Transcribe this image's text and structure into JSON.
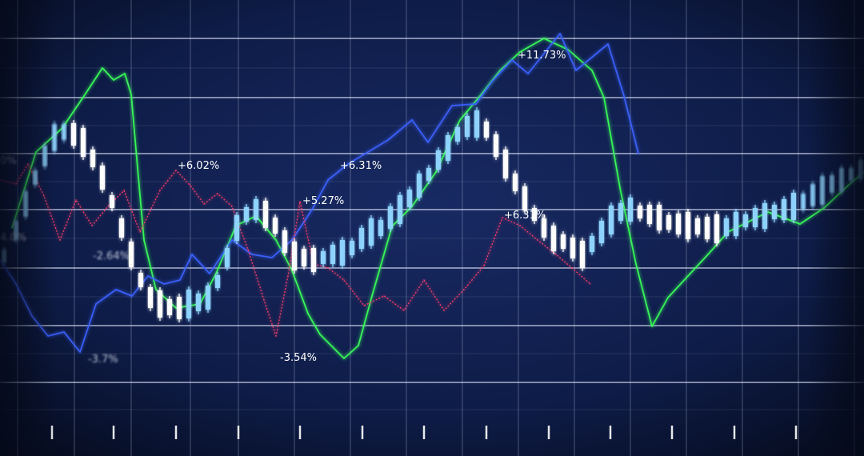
{
  "chart_data": {
    "type": "line",
    "grid": true,
    "annotations": [
      "+6.02%",
      "+6.31%",
      "+5.27%",
      "+11.73%",
      "+6.31%",
      "-2.64%",
      "-3.54%",
      "-3.7%",
      "4.0%",
      "0%"
    ],
    "series": [
      {
        "kind": "line",
        "color": "#3aff5a",
        "values": [
          [
            15,
            285
          ],
          [
            45,
            190
          ],
          [
            78,
            160
          ],
          [
            105,
            120
          ],
          [
            128,
            85
          ],
          [
            142,
            100
          ],
          [
            156,
            92
          ],
          [
            164,
            118
          ],
          [
            172,
            210
          ],
          [
            180,
            300
          ],
          [
            195,
            362
          ],
          [
            220,
            385
          ],
          [
            250,
            380
          ],
          [
            270,
            342
          ],
          [
            295,
            282
          ],
          [
            320,
            270
          ],
          [
            345,
            300
          ],
          [
            365,
            338
          ],
          [
            385,
            392
          ],
          [
            400,
            418
          ],
          [
            430,
            448
          ],
          [
            448,
            432
          ],
          [
            465,
            370
          ],
          [
            490,
            283
          ],
          [
            515,
            258
          ],
          [
            545,
            215
          ],
          [
            575,
            150
          ],
          [
            600,
            120
          ],
          [
            625,
            88
          ],
          [
            650,
            65
          ],
          [
            680,
            48
          ],
          [
            710,
            62
          ],
          [
            740,
            88
          ],
          [
            755,
            122
          ],
          [
            775,
            235
          ],
          [
            795,
            330
          ],
          [
            815,
            408
          ],
          [
            835,
            372
          ],
          [
            860,
            345
          ],
          [
            885,
            318
          ],
          [
            910,
            290
          ],
          [
            960,
            265
          ],
          [
            1000,
            280
          ],
          [
            1030,
            260
          ],
          [
            1060,
            232
          ],
          [
            1080,
            215
          ]
        ]
      },
      {
        "kind": "line",
        "color": "#3c62ff",
        "values": [
          [
            0,
            325
          ],
          [
            20,
            355
          ],
          [
            40,
            395
          ],
          [
            60,
            420
          ],
          [
            80,
            415
          ],
          [
            100,
            440
          ],
          [
            120,
            380
          ],
          [
            145,
            362
          ],
          [
            165,
            370
          ],
          [
            185,
            345
          ],
          [
            205,
            355
          ],
          [
            225,
            350
          ],
          [
            240,
            318
          ],
          [
            262,
            342
          ],
          [
            290,
            300
          ],
          [
            315,
            318
          ],
          [
            340,
            322
          ],
          [
            365,
            300
          ],
          [
            390,
            262
          ],
          [
            410,
            225
          ],
          [
            435,
            205
          ],
          [
            460,
            190
          ],
          [
            485,
            175
          ],
          [
            515,
            150
          ],
          [
            535,
            178
          ],
          [
            565,
            132
          ],
          [
            595,
            130
          ],
          [
            615,
            102
          ],
          [
            640,
            75
          ],
          [
            660,
            92
          ],
          [
            700,
            42
          ],
          [
            720,
            88
          ],
          [
            760,
            55
          ],
          [
            780,
            120
          ],
          [
            798,
            192
          ]
        ]
      },
      {
        "kind": "line",
        "color": "#ff3d6a",
        "values": [
          [
            0,
            225
          ],
          [
            20,
            230
          ],
          [
            35,
            205
          ],
          [
            55,
            245
          ],
          [
            75,
            300
          ],
          [
            95,
            250
          ],
          [
            115,
            282
          ],
          [
            135,
            258
          ],
          [
            155,
            238
          ],
          [
            175,
            290
          ],
          [
            200,
            238
          ],
          [
            220,
            213
          ],
          [
            238,
            232
          ],
          [
            255,
            255
          ],
          [
            272,
            242
          ],
          [
            290,
            258
          ],
          [
            310,
            312
          ],
          [
            330,
            375
          ],
          [
            345,
            420
          ],
          [
            360,
            345
          ],
          [
            375,
            252
          ],
          [
            392,
            330
          ],
          [
            410,
            335
          ],
          [
            430,
            350
          ],
          [
            455,
            382
          ],
          [
            480,
            370
          ],
          [
            505,
            388
          ],
          [
            530,
            350
          ],
          [
            555,
            388
          ],
          [
            580,
            362
          ],
          [
            605,
            332
          ],
          [
            628,
            272
          ],
          [
            650,
            282
          ],
          [
            672,
            300
          ],
          [
            695,
            318
          ],
          [
            715,
            335
          ],
          [
            738,
            355
          ]
        ]
      },
      {
        "kind": "candlestick",
        "up_color": "#8fd5ff",
        "down_color": "#ffffff",
        "values": [
          [
            5,
            320
          ],
          [
            20,
            288
          ],
          [
            32,
            255
          ],
          [
            44,
            222
          ],
          [
            56,
            195
          ],
          [
            68,
            172
          ],
          [
            80,
            165
          ],
          [
            92,
            168
          ],
          [
            104,
            178
          ],
          [
            116,
            198
          ],
          [
            128,
            222
          ],
          [
            140,
            252
          ],
          [
            152,
            285
          ],
          [
            164,
            318
          ],
          [
            176,
            350
          ],
          [
            188,
            372
          ],
          [
            200,
            380
          ],
          [
            212,
            384
          ],
          [
            224,
            385
          ],
          [
            236,
            380
          ],
          [
            248,
            378
          ],
          [
            260,
            372
          ],
          [
            272,
            352
          ],
          [
            284,
            322
          ],
          [
            296,
            285
          ],
          [
            308,
            268
          ],
          [
            320,
            262
          ],
          [
            332,
            268
          ],
          [
            344,
            282
          ],
          [
            356,
            302
          ],
          [
            368,
            320
          ],
          [
            380,
            322
          ],
          [
            392,
            325
          ],
          [
            404,
            322
          ],
          [
            416,
            318
          ],
          [
            428,
            316
          ],
          [
            440,
            310
          ],
          [
            452,
            298
          ],
          [
            464,
            290
          ],
          [
            476,
            285
          ],
          [
            488,
            272
          ],
          [
            500,
            262
          ],
          [
            512,
            248
          ],
          [
            524,
            232
          ],
          [
            536,
            218
          ],
          [
            548,
            200
          ],
          [
            560,
            185
          ],
          [
            572,
            168
          ],
          [
            584,
            158
          ],
          [
            596,
            155
          ],
          [
            608,
            162
          ],
          [
            620,
            182
          ],
          [
            632,
            205
          ],
          [
            644,
            228
          ],
          [
            656,
            248
          ],
          [
            668,
            268
          ],
          [
            680,
            285
          ],
          [
            692,
            298
          ],
          [
            704,
            302
          ],
          [
            716,
            310
          ],
          [
            728,
            318
          ],
          [
            740,
            305
          ],
          [
            752,
            290
          ],
          [
            764,
            275
          ],
          [
            776,
            265
          ],
          [
            788,
            262
          ],
          [
            800,
            265
          ],
          [
            812,
            268
          ],
          [
            824,
            272
          ],
          [
            836,
            278
          ],
          [
            848,
            280
          ],
          [
            860,
            282
          ],
          [
            872,
            283
          ],
          [
            884,
            285
          ],
          [
            896,
            286
          ],
          [
            908,
            284
          ],
          [
            920,
            280
          ],
          [
            932,
            276
          ],
          [
            944,
            272
          ],
          [
            956,
            270
          ],
          [
            968,
            265
          ],
          [
            980,
            262
          ],
          [
            992,
            258
          ],
          [
            1004,
            252
          ],
          [
            1016,
            244
          ],
          [
            1028,
            238
          ],
          [
            1040,
            230
          ],
          [
            1052,
            225
          ],
          [
            1064,
            218
          ],
          [
            1076,
            212
          ]
        ]
      }
    ]
  }
}
